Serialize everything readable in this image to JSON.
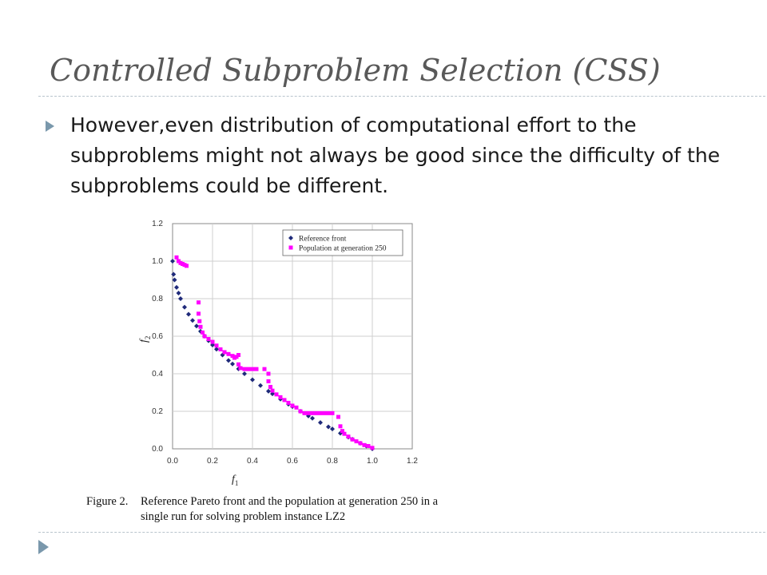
{
  "slide": {
    "title": "Controlled Subproblem Selection (CSS)",
    "bullet": "However,even distribution of computational effort  to the subproblems might not always be good since the difficulty of the subproblems could be different."
  },
  "figure": {
    "caption_label": "Figure 2.",
    "caption_line1": "Reference Pareto front and the population at generation 250 in a",
    "caption_line2": "single run for solving problem instance LZ2"
  },
  "colors": {
    "accent": "#7a98ac",
    "reference": "#1f2a7a",
    "population": "#ff00ff"
  },
  "chart_data": {
    "type": "scatter",
    "xlabel": "f1",
    "ylabel": "f2",
    "xlim": [
      0.0,
      1.2
    ],
    "ylim": [
      0.0,
      1.2
    ],
    "x_ticks": [
      "0.0",
      "0.2",
      "0.4",
      "0.6",
      "0.8",
      "1.0",
      "1.2"
    ],
    "y_ticks": [
      "0.0",
      "0.2",
      "0.4",
      "0.6",
      "0.8",
      "1.0",
      "1.2"
    ],
    "grid": true,
    "legend_position": "top-right",
    "series": [
      {
        "name": "Reference front",
        "marker": "diamond",
        "color": "#1f2a7a",
        "x": [
          0.0,
          0.005,
          0.01,
          0.02,
          0.03,
          0.04,
          0.06,
          0.08,
          0.1,
          0.12,
          0.14,
          0.16,
          0.18,
          0.2,
          0.22,
          0.25,
          0.28,
          0.3,
          0.33,
          0.36,
          0.4,
          0.44,
          0.48,
          0.5,
          0.54,
          0.58,
          0.6,
          0.64,
          0.68,
          0.7,
          0.74,
          0.78,
          0.8,
          0.84,
          0.88,
          0.9,
          0.94,
          0.97,
          1.0
        ],
        "y": [
          1.0,
          0.93,
          0.9,
          0.86,
          0.83,
          0.8,
          0.755,
          0.717,
          0.684,
          0.654,
          0.626,
          0.6,
          0.576,
          0.553,
          0.531,
          0.5,
          0.471,
          0.452,
          0.426,
          0.4,
          0.368,
          0.337,
          0.307,
          0.293,
          0.265,
          0.238,
          0.225,
          0.2,
          0.175,
          0.163,
          0.14,
          0.117,
          0.106,
          0.083,
          0.062,
          0.051,
          0.03,
          0.015,
          0.0
        ]
      },
      {
        "name": "Population at generation 250",
        "marker": "square",
        "color": "#ff00ff",
        "x": [
          0.02,
          0.03,
          0.04,
          0.05,
          0.06,
          0.07,
          0.13,
          0.13,
          0.135,
          0.14,
          0.15,
          0.16,
          0.18,
          0.2,
          0.22,
          0.24,
          0.26,
          0.28,
          0.3,
          0.31,
          0.32,
          0.33,
          0.33,
          0.34,
          0.36,
          0.38,
          0.4,
          0.42,
          0.46,
          0.48,
          0.48,
          0.49,
          0.5,
          0.52,
          0.54,
          0.56,
          0.58,
          0.6,
          0.62,
          0.64,
          0.66,
          0.68,
          0.7,
          0.72,
          0.74,
          0.76,
          0.78,
          0.8,
          0.83,
          0.84,
          0.85,
          0.86,
          0.88,
          0.9,
          0.92,
          0.94,
          0.96,
          0.98,
          1.0
        ],
        "y": [
          1.02,
          1.0,
          0.99,
          0.985,
          0.98,
          0.975,
          0.78,
          0.72,
          0.68,
          0.65,
          0.62,
          0.6,
          0.585,
          0.57,
          0.55,
          0.53,
          0.515,
          0.505,
          0.495,
          0.485,
          0.49,
          0.5,
          0.45,
          0.43,
          0.425,
          0.425,
          0.425,
          0.425,
          0.425,
          0.4,
          0.36,
          0.33,
          0.31,
          0.29,
          0.275,
          0.26,
          0.245,
          0.23,
          0.22,
          0.2,
          0.19,
          0.19,
          0.19,
          0.19,
          0.19,
          0.19,
          0.19,
          0.19,
          0.17,
          0.12,
          0.095,
          0.08,
          0.065,
          0.05,
          0.04,
          0.03,
          0.02,
          0.015,
          0.005
        ]
      }
    ]
  }
}
